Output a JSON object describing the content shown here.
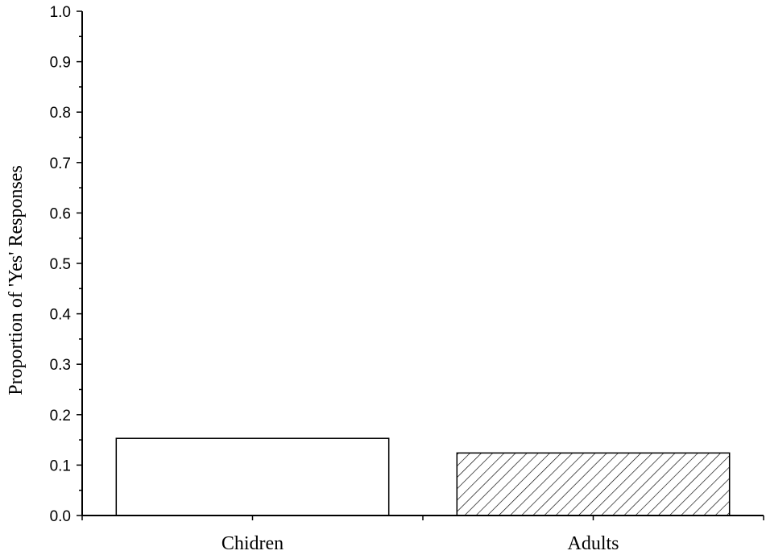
{
  "chart_data": {
    "type": "bar",
    "title": "",
    "xlabel": "",
    "ylabel": "Proportion of 'Yes' Responses",
    "ylim": [
      0,
      1.0
    ],
    "ytick_step": 0.1,
    "ytick_labels": [
      "0.0",
      "0.1",
      "0.2",
      "0.3",
      "0.4",
      "0.5",
      "0.6",
      "0.7",
      "0.8",
      "0.9",
      "1.0"
    ],
    "categories": [
      "Chidren",
      "Adults"
    ],
    "values": [
      0.153,
      0.124
    ],
    "fills": [
      "solid-white",
      "diagonal-hatch"
    ],
    "bar_color": "#ffffff",
    "edge_color": "#000000",
    "grid": false,
    "legend": "none"
  }
}
